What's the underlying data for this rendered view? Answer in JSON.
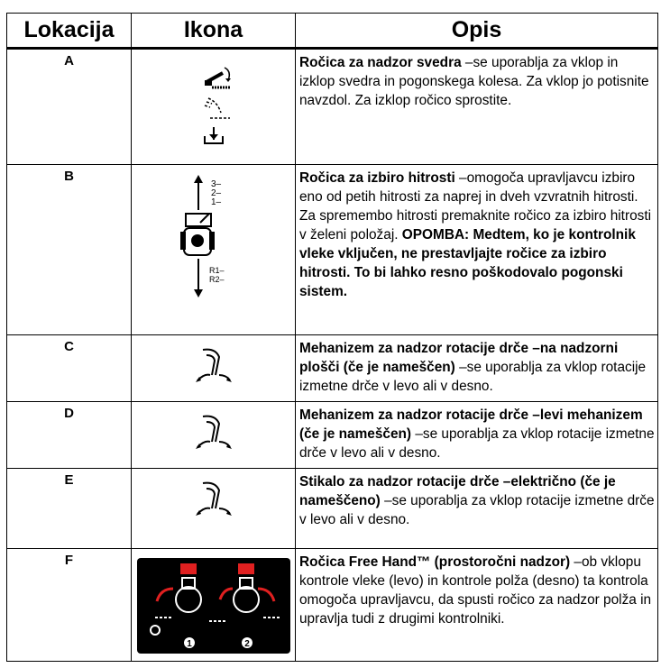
{
  "table": {
    "headers": [
      "Lokacija",
      "Ikona",
      "Opis"
    ],
    "rows": [
      {
        "location": "A",
        "description": [
          {
            "text": "Ročica za nadzor svedra",
            "bold": true
          },
          {
            "text": " –se uporablja za vklop in izklop svedra in pogonskega kolesa. Za vklop jo potisnite navzdol. Za izklop ročico sprostite.",
            "bold": false
          }
        ]
      },
      {
        "location": "B",
        "icon_labels": [
          "3–",
          "2–",
          "1–",
          "R1–",
          "R2–"
        ],
        "description": [
          {
            "text": "Ročica za izbiro hitrosti",
            "bold": true
          },
          {
            "text": " –omogoča upravljavcu izbiro eno od petih hitrosti za naprej in dveh vzvratnih hitrosti. Za spremembo hitrosti premaknite ročico za izbiro hitrosti v želeni položaj. ",
            "bold": false
          },
          {
            "text": "OPOMBA: Medtem, ko je kontrolnik vleke vključen, ne prestavljajte ročice za izbiro hitrosti. To bi lahko resno poškodovalo pogonski sistem.",
            "bold": true
          }
        ]
      },
      {
        "location": "C",
        "description": [
          {
            "text": "Mehanizem za nadzor rotacije drče –na nadzorni plošči (če je nameščen)",
            "bold": true
          },
          {
            "text": " –se uporablja za vklop rotacije izmetne drče v levo ali v desno.",
            "bold": false
          }
        ]
      },
      {
        "location": "D",
        "description": [
          {
            "text": "Mehanizem za nadzor rotacije drče –levi mehanizem (če je nameščen)",
            "bold": true
          },
          {
            "text": " –se uporablja za vklop rotacije izmetne drče v levo ali v desno.",
            "bold": false
          }
        ]
      },
      {
        "location": "E",
        "description": [
          {
            "text": "Stikalo za nadzor rotacije drče –električno (če je nameščeno)",
            "bold": true
          },
          {
            "text": " –se uporablja za vklop rotacije izmetne drče v levo ali v desno.",
            "bold": false
          }
        ]
      },
      {
        "location": "F",
        "icon_labels": [
          "1",
          "2"
        ],
        "description": [
          {
            "text": "Ročica Free Hand™ (prostoročni nadzor)",
            "bold": true
          },
          {
            "text": " –ob vklopu kontrole vleke (levo) in kontrole polža (desno) ta kontrola omogoča upravljavcu, da spusti ročico za nadzor polža in upravlja tudi z drugimi kontrolniki.",
            "bold": false
          }
        ]
      }
    ]
  }
}
